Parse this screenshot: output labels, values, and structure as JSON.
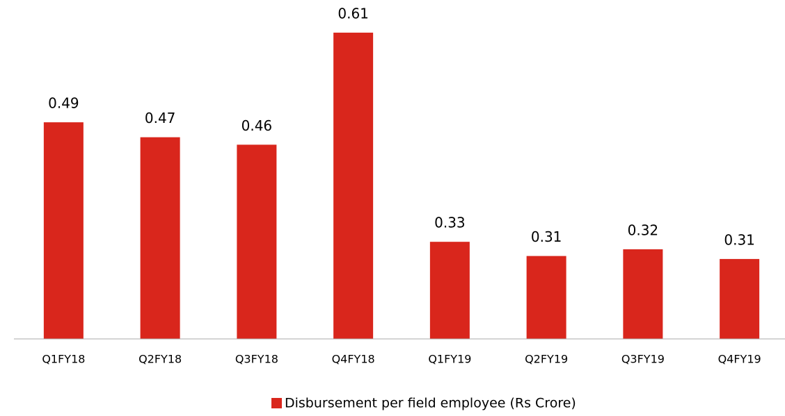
{
  "chart_data": {
    "type": "bar",
    "categories": [
      "Q1FY18",
      "Q2FY18",
      "Q3FY18",
      "Q4FY18",
      "Q1FY19",
      "Q2FY19",
      "Q3FY19",
      "Q4FY19"
    ],
    "series": [
      {
        "name": "Disbursement per field employee (Rs Crore)",
        "color": "#d9261c",
        "values": [
          0.49,
          0.47,
          0.46,
          0.61,
          0.33,
          0.311,
          0.32,
          0.307
        ],
        "value_labels": [
          "0.49",
          "0.47",
          "0.46",
          "0.61",
          "0.33",
          "0.31",
          "0.32",
          "0.31"
        ]
      }
    ],
    "ylim": [
      0.2,
      0.65
    ],
    "legend": "bottom"
  }
}
